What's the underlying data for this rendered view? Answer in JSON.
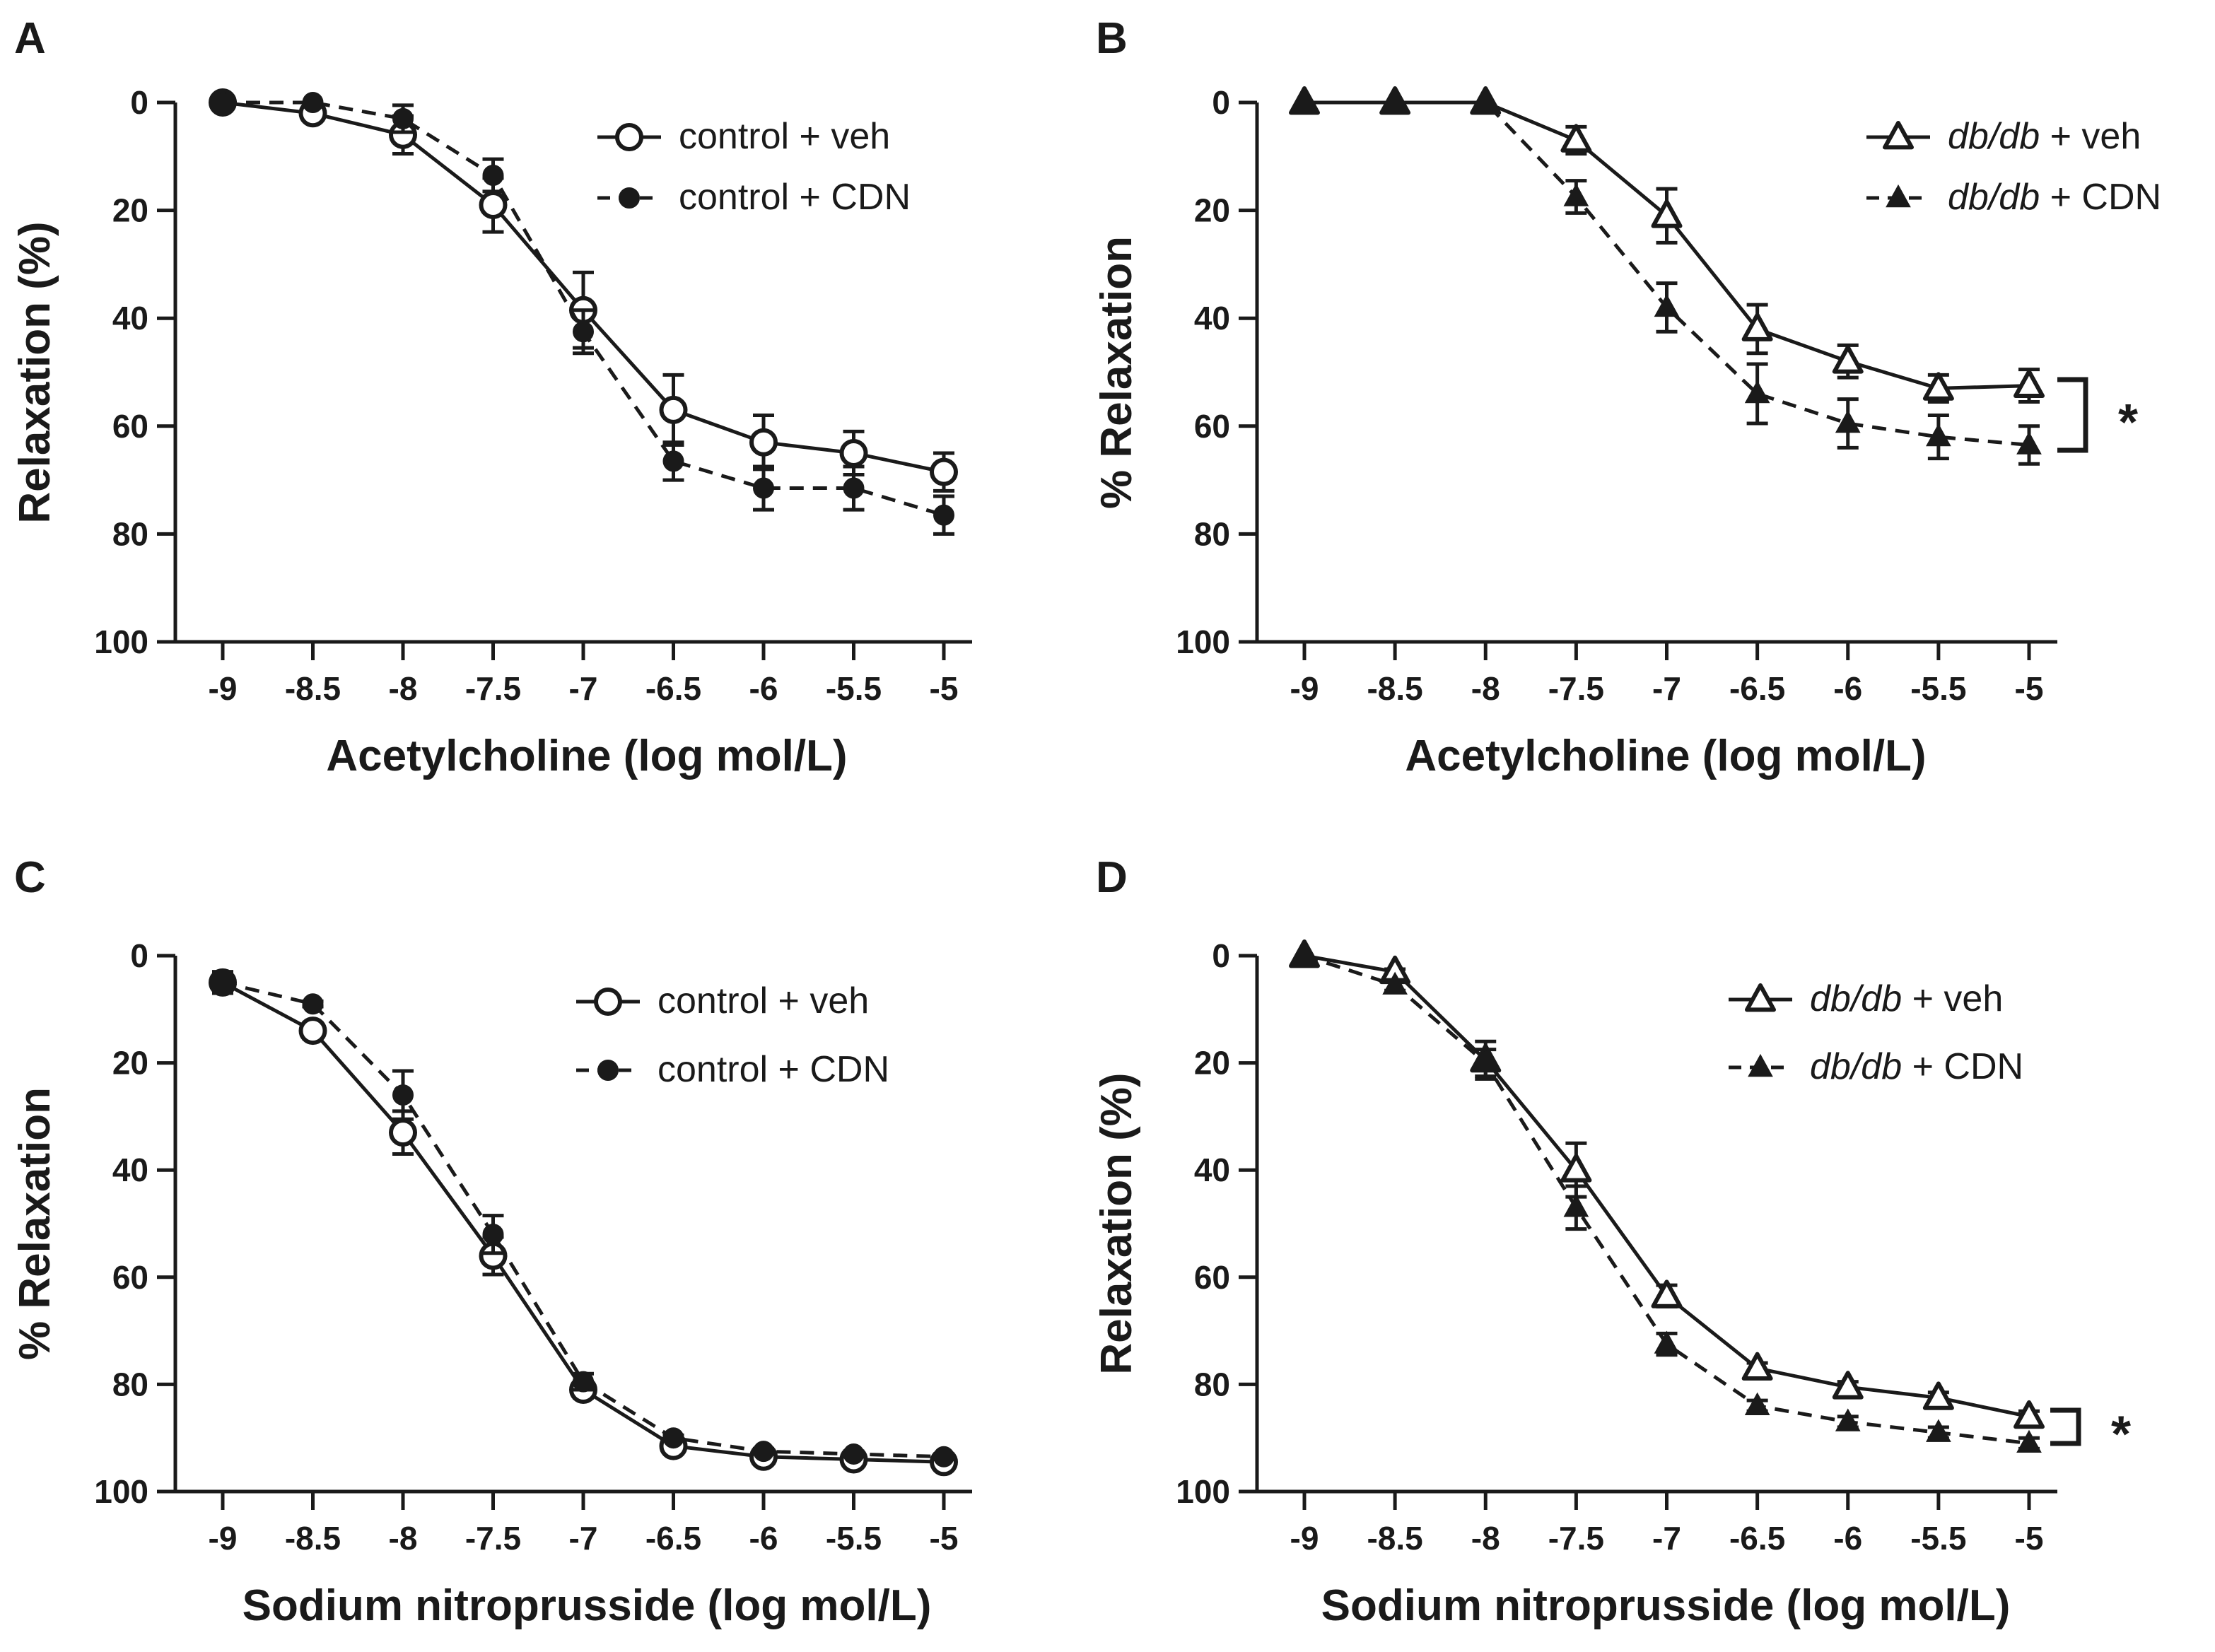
{
  "figure": {
    "panels": [
      "A",
      "B",
      "C",
      "D"
    ]
  },
  "chart_data": [
    {
      "panel": "A",
      "type": "line",
      "xlabel": "Acetylcholine (log mol/L)",
      "ylabel": "Relaxation (%)",
      "x": [
        -9,
        -8.5,
        -8,
        -7.5,
        -7,
        -6.5,
        -6,
        -5.5,
        -5
      ],
      "xtick_labels": [
        "-9",
        "-8.5",
        "-8",
        "-7.5",
        "-7",
        "-6.5",
        "-6",
        "-5.5",
        "-5"
      ],
      "ytick_labels": [
        "0",
        "20",
        "40",
        "60",
        "80",
        "100"
      ],
      "ylim": [
        0,
        100
      ],
      "y_inverted": true,
      "legend_position": "top-right",
      "series": [
        {
          "name": "control + veh",
          "name_em": "",
          "name_rest": "control + veh",
          "marker": "open-circle",
          "line": "solid",
          "values": [
            0,
            2,
            6,
            19,
            38.5,
            57,
            63,
            65,
            68.5
          ],
          "errors": [
            0,
            0,
            3.5,
            5,
            7,
            6.5,
            5,
            4,
            3.5
          ]
        },
        {
          "name": "control + CDN",
          "name_em": "",
          "name_rest": "control + CDN",
          "marker": "filled-circle",
          "line": "dashed",
          "values": [
            0,
            0,
            3,
            13.5,
            42.5,
            66.5,
            71.5,
            71.5,
            76.5
          ],
          "errors": [
            0,
            0,
            2.5,
            3,
            4,
            3.5,
            4,
            4,
            3.5
          ]
        }
      ],
      "significance": ""
    },
    {
      "panel": "B",
      "type": "line",
      "xlabel": "Acetylcholine (log mol/L)",
      "ylabel": "% Relaxation",
      "x": [
        -9,
        -8.5,
        -8,
        -7.5,
        -7,
        -6.5,
        -6,
        -5.5,
        -5
      ],
      "xtick_labels": [
        "-9",
        "-8.5",
        "-8",
        "-7.5",
        "-7",
        "-6.5",
        "-6",
        "-5.5",
        "-5"
      ],
      "ytick_labels": [
        "0",
        "20",
        "40",
        "60",
        "80",
        "100"
      ],
      "ylim": [
        0,
        100
      ],
      "y_inverted": true,
      "legend_position": "top-right",
      "series": [
        {
          "name": "db/db + veh",
          "name_em": "db/db",
          "name_rest": " + veh",
          "marker": "open-triangle",
          "line": "solid",
          "values": [
            0,
            0,
            0,
            7,
            21,
            42,
            48,
            53,
            52.5
          ],
          "errors": [
            0,
            0,
            0,
            2.5,
            5,
            4.5,
            3,
            2.5,
            3
          ]
        },
        {
          "name": "db/db + CDN",
          "name_em": "db/db",
          "name_rest": " + CDN",
          "marker": "filled-triangle",
          "line": "dashed",
          "values": [
            0,
            0,
            0,
            17.5,
            38,
            54,
            59.5,
            62,
            63.5
          ],
          "errors": [
            0,
            0,
            0,
            3,
            4.5,
            5.5,
            4.5,
            4,
            3.5
          ]
        }
      ],
      "significance": "*"
    },
    {
      "panel": "C",
      "type": "line",
      "xlabel": "Sodium nitroprusside (log mol/L)",
      "ylabel": "% Relaxation",
      "x": [
        -9,
        -8.5,
        -8,
        -7.5,
        -7,
        -6.5,
        -6,
        -5.5,
        -5
      ],
      "xtick_labels": [
        "-9",
        "-8.5",
        "-8",
        "-7.5",
        "-7",
        "-6.5",
        "-6",
        "-5.5",
        "-5"
      ],
      "ytick_labels": [
        "0",
        "20",
        "40",
        "60",
        "80",
        "100"
      ],
      "ylim": [
        0,
        100
      ],
      "y_inverted": true,
      "legend_position": "top-right",
      "series": [
        {
          "name": "control + veh",
          "name_em": "",
          "name_rest": "control + veh",
          "marker": "open-circle",
          "line": "solid",
          "values": [
            5,
            14,
            33,
            56,
            81,
            91.5,
            93.5,
            94,
            94.5
          ],
          "errors": [
            2,
            1.5,
            4,
            3.5,
            1.5,
            0.5,
            0.5,
            0.5,
            0.5
          ]
        },
        {
          "name": "control + CDN",
          "name_em": "",
          "name_rest": "control + CDN",
          "marker": "filled-circle",
          "line": "dashed",
          "values": [
            5,
            9,
            26,
            52,
            79.5,
            90,
            92.5,
            93,
            93.5
          ],
          "errors": [
            2,
            0.5,
            4.5,
            3.5,
            1.5,
            0.5,
            0.5,
            0.5,
            0.5
          ]
        }
      ],
      "significance": ""
    },
    {
      "panel": "D",
      "type": "line",
      "xlabel": "Sodium nitroprusside (log mol/L)",
      "ylabel": "Relaxation (%)",
      "x": [
        -9,
        -8.5,
        -8,
        -7.5,
        -7,
        -6.5,
        -6,
        -5.5,
        -5
      ],
      "xtick_labels": [
        "-9",
        "-8.5",
        "-8",
        "-7.5",
        "-7",
        "-6.5",
        "-6",
        "-5.5",
        "-5"
      ],
      "ytick_labels": [
        "0",
        "20",
        "40",
        "60",
        "80",
        "100"
      ],
      "ylim": [
        0,
        100
      ],
      "y_inverted": true,
      "legend_position": "top-right",
      "series": [
        {
          "name": "db/db + veh",
          "name_em": "db/db",
          "name_rest": " + veh",
          "marker": "open-triangle",
          "line": "solid",
          "values": [
            0,
            3,
            19.5,
            40,
            63.5,
            77,
            80.5,
            82.5,
            86
          ],
          "errors": [
            0,
            0.5,
            3.5,
            5,
            2,
            1,
            1,
            1,
            1
          ]
        },
        {
          "name": "db/db + CDN",
          "name_em": "db/db",
          "name_rest": " + CDN",
          "marker": "filled-triangle",
          "line": "dashed",
          "values": [
            0,
            5.5,
            20,
            47,
            72.5,
            84,
            87,
            89,
            91
          ],
          "errors": [
            0,
            1,
            2.5,
            4,
            2,
            1,
            1,
            1,
            1
          ]
        }
      ],
      "significance": "*"
    }
  ]
}
